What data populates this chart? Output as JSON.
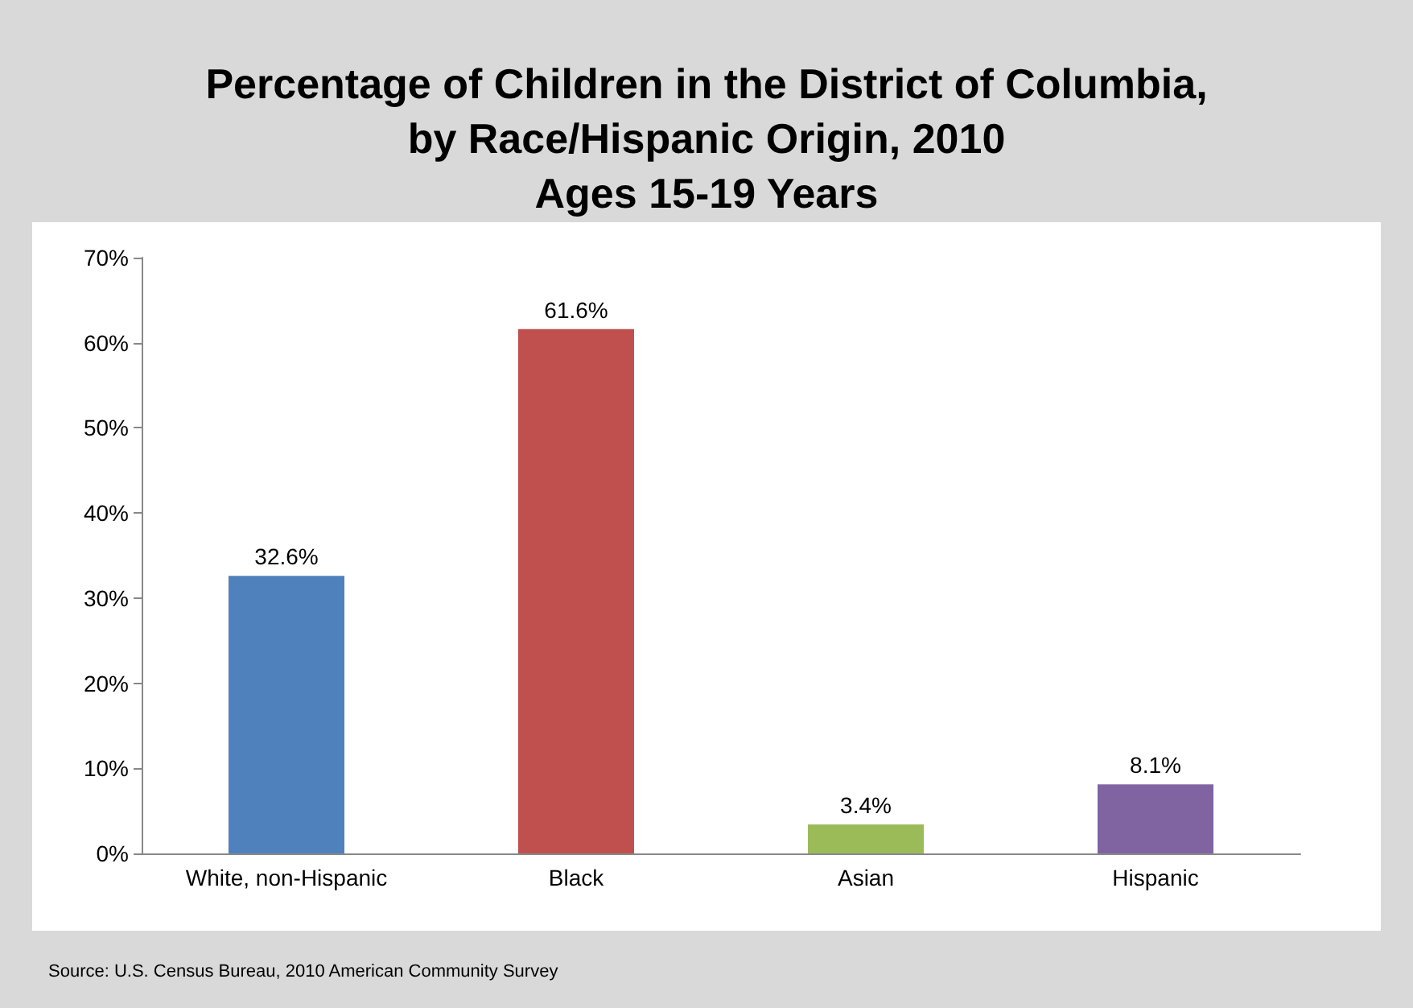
{
  "chart_data": {
    "type": "bar",
    "title": "Percentage of Children in the District of Columbia,\nby Race/Hispanic Origin, 2010\nAges 15-19 Years",
    "categories": [
      "White, non-Hispanic",
      "Black",
      "Asian",
      "Hispanic"
    ],
    "values": [
      32.6,
      61.6,
      3.4,
      8.1
    ],
    "colors": [
      "#4f81bd",
      "#c0504d",
      "#9bbb59",
      "#8064a2"
    ],
    "value_labels": [
      "32.6%",
      "61.6%",
      "3.4%",
      "8.1%"
    ],
    "ylim": [
      0,
      70
    ],
    "yticks": [
      {
        "value": 0,
        "label": "0%"
      },
      {
        "value": 10,
        "label": "10%"
      },
      {
        "value": 20,
        "label": "20%"
      },
      {
        "value": 30,
        "label": "30%"
      },
      {
        "value": 40,
        "label": "40%"
      },
      {
        "value": 50,
        "label": "50%"
      },
      {
        "value": 60,
        "label": "60%"
      },
      {
        "value": 70,
        "label": "70%"
      }
    ],
    "grid": false,
    "annotations": [
      "Source: U.S. Census Bureau, 2010 American Community Survey"
    ]
  }
}
